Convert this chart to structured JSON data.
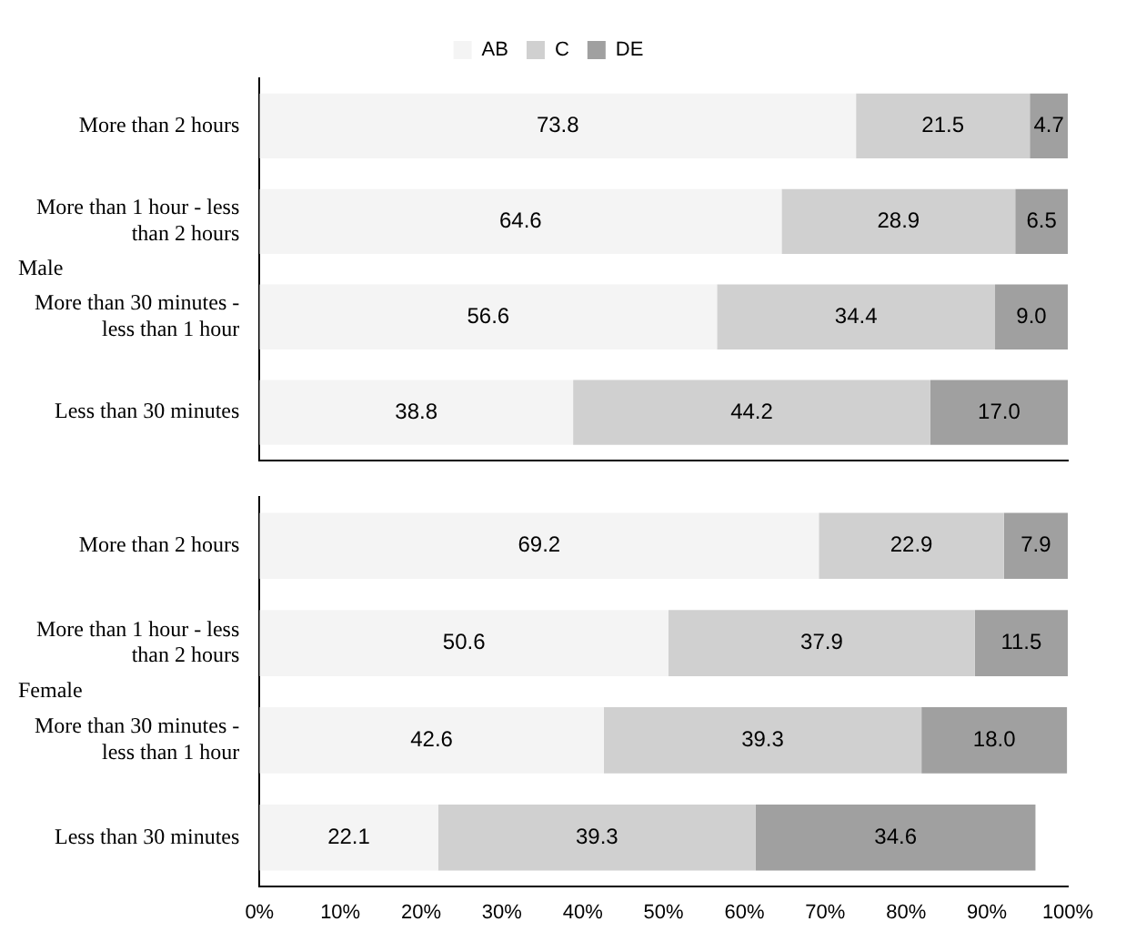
{
  "chart_data": [
    {
      "type": "bar",
      "orientation": "horizontal",
      "stacked": true,
      "ylabel": "Male",
      "legend": "top",
      "tick_labels": "y",
      "xlim": [
        0,
        100
      ],
      "categories": [
        "More than 2 hours",
        "More than 1 hour - less than 2 hours",
        "More than 30 minutes - less than 1 hour",
        "Less than 30 minutes"
      ],
      "series": [
        {
          "name": "AB",
          "color": "#f4f4f4",
          "values": [
            73.8,
            64.6,
            56.6,
            38.8
          ],
          "value_labels": [
            "73.8",
            "64.6",
            "56.6",
            "38.8"
          ]
        },
        {
          "name": "C",
          "color": "#d0d0d0",
          "values": [
            21.5,
            28.9,
            34.4,
            44.2
          ],
          "value_labels": [
            "21.5",
            "28.9",
            "34.4",
            "44.2"
          ]
        },
        {
          "name": "DE",
          "color": "#a0a0a0",
          "values": [
            4.7,
            6.5,
            9.0,
            17.0
          ],
          "value_labels": [
            "4.7",
            "6.5",
            "9.0",
            "17.0"
          ]
        }
      ]
    },
    {
      "type": "bar",
      "orientation": "horizontal",
      "stacked": true,
      "ylabel": "Female",
      "xlim": [
        0,
        100
      ],
      "xticks": [
        {
          "value": 0,
          "label": "0%"
        },
        {
          "value": 10,
          "label": "10%"
        },
        {
          "value": 20,
          "label": "20%"
        },
        {
          "value": 30,
          "label": "30%"
        },
        {
          "value": 40,
          "label": "40%"
        },
        {
          "value": 50,
          "label": "50%"
        },
        {
          "value": 60,
          "label": "60%"
        },
        {
          "value": 70,
          "label": "70%"
        },
        {
          "value": 80,
          "label": "80%"
        },
        {
          "value": 90,
          "label": "90%"
        },
        {
          "value": 100,
          "label": "100%"
        }
      ],
      "categories": [
        "More than 2 hours",
        "More than 1 hour - less than 2 hours",
        "More than 30 minutes - less than 1 hour",
        "Less than 30 minutes"
      ],
      "series": [
        {
          "color": "#f4f4f4",
          "values": [
            69.2,
            50.6,
            42.6,
            22.1
          ],
          "value_labels": [
            "69.2",
            "50.6",
            "42.6",
            "22.1"
          ]
        },
        {
          "color": "#d0d0d0",
          "values": [
            22.9,
            37.9,
            39.3,
            39.3
          ],
          "value_labels": [
            "22.9",
            "37.9",
            "39.3",
            "39.3"
          ]
        },
        {
          "color": "#a0a0a0",
          "values": [
            7.9,
            11.5,
            18.0,
            34.6
          ],
          "value_labels": [
            "7.9",
            "11.5",
            "18.0",
            "34.6"
          ]
        }
      ]
    }
  ]
}
